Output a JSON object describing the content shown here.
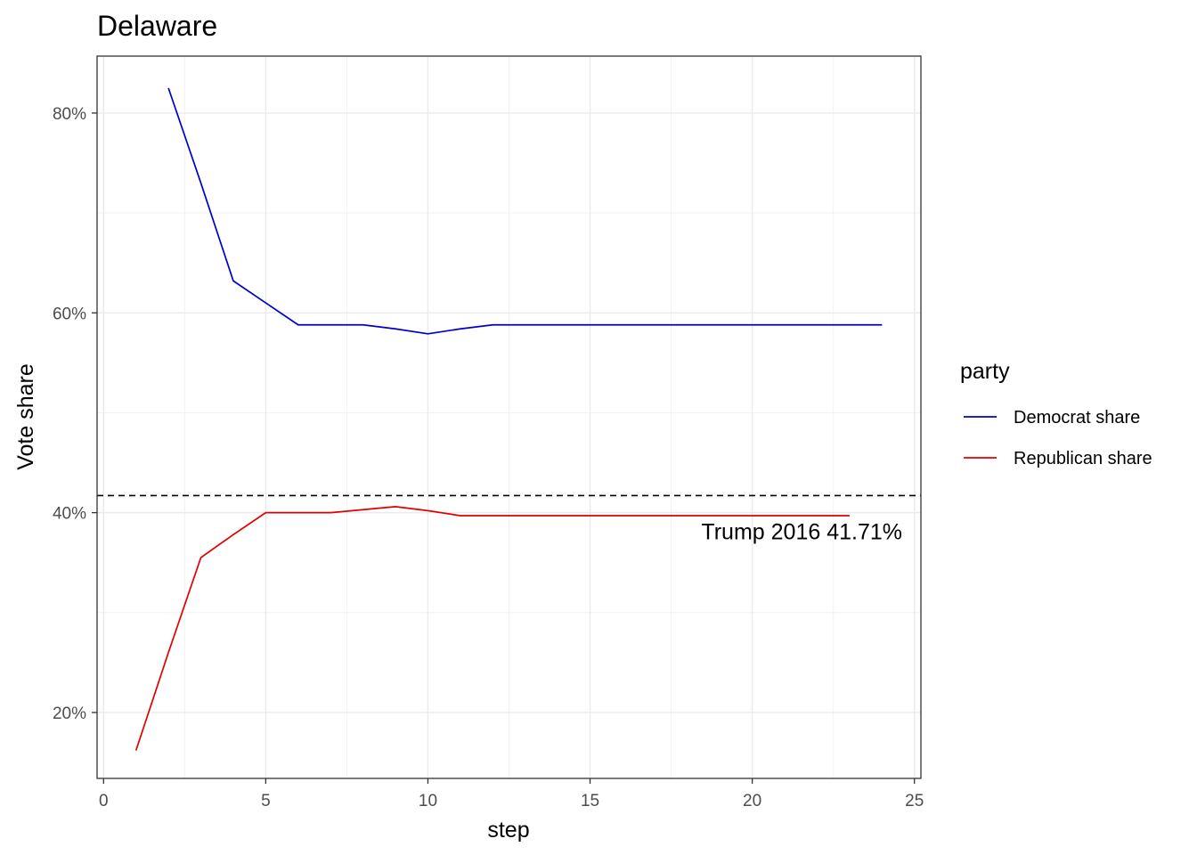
{
  "chart_data": {
    "type": "line",
    "title": "Delaware",
    "xlabel": "step",
    "ylabel": "Vote share",
    "xlim": [
      -0.2,
      25.2
    ],
    "ylim": [
      0.134,
      0.857
    ],
    "x_ticks": [
      0,
      5,
      10,
      15,
      20,
      25
    ],
    "y_ticks": [
      0.2,
      0.4,
      0.6,
      0.8
    ],
    "x_tick_labels": [
      "0",
      "5",
      "10",
      "15",
      "20",
      "25"
    ],
    "y_tick_labels": [
      "20%",
      "40%",
      "60%",
      "80%"
    ],
    "grid": true,
    "legend": {
      "title": "party",
      "position": "right",
      "entries": [
        "Democrat share",
        "Republican share"
      ]
    },
    "series": [
      {
        "name": "Democrat share",
        "color": "#0000cc",
        "x": [
          2,
          3,
          4,
          5,
          6,
          7,
          8,
          9,
          10,
          11,
          12,
          13,
          14,
          15,
          16,
          17,
          18,
          19,
          20,
          21,
          22,
          23,
          24
        ],
        "y": [
          0.825,
          0.73,
          0.632,
          0.61,
          0.588,
          0.588,
          0.588,
          0.584,
          0.579,
          0.584,
          0.588,
          0.588,
          0.588,
          0.588,
          0.588,
          0.588,
          0.588,
          0.588,
          0.588,
          0.588,
          0.588,
          0.588,
          0.588
        ]
      },
      {
        "name": "Republican share",
        "color": "#e00000",
        "x": [
          1,
          2,
          3,
          4,
          5,
          6,
          7,
          8,
          9,
          10,
          11,
          12,
          13,
          14,
          15,
          16,
          17,
          18,
          19,
          20,
          21,
          22,
          23
        ],
        "y": [
          0.162,
          0.26,
          0.355,
          0.378,
          0.4,
          0.4,
          0.4,
          0.403,
          0.406,
          0.402,
          0.397,
          0.397,
          0.397,
          0.397,
          0.397,
          0.397,
          0.397,
          0.397,
          0.397,
          0.397,
          0.397,
          0.397,
          0.397
        ]
      }
    ],
    "reference_line": {
      "y": 0.4171,
      "style": "dashed",
      "color": "#000000",
      "label": "Trump 2016 41.71%"
    }
  }
}
